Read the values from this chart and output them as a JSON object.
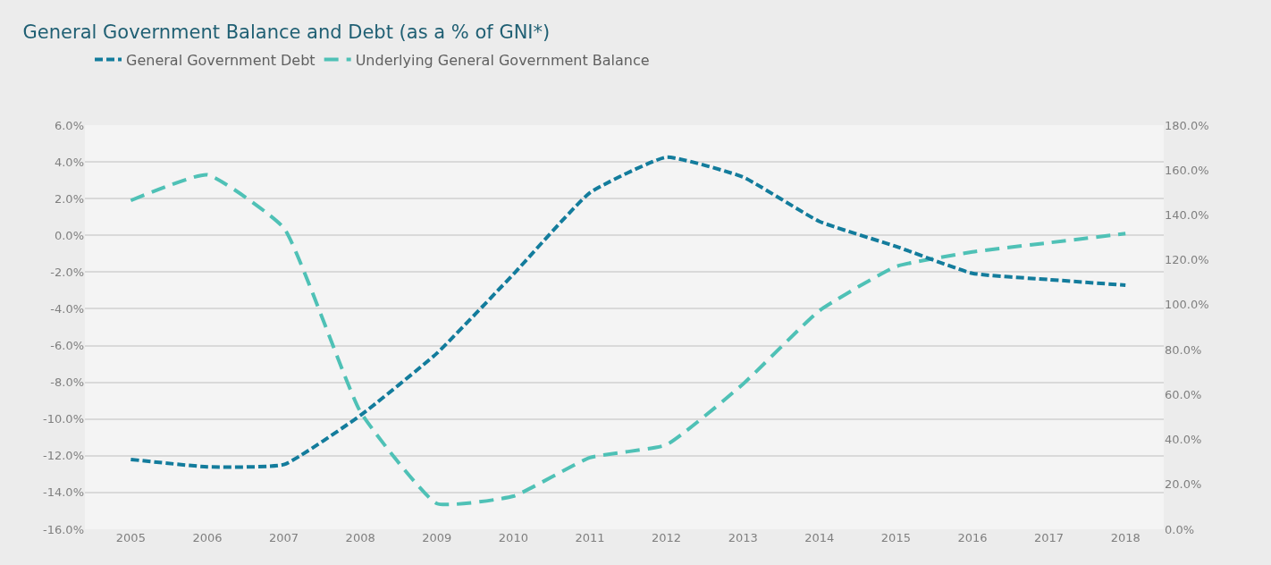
{
  "chart_data": {
    "type": "line",
    "title": "General Government Balance and Debt (as a % of GNI*)",
    "categories": [
      "2005",
      "2006",
      "2007",
      "2008",
      "2009",
      "2010",
      "2011",
      "2012",
      "2013",
      "2014",
      "2015",
      "2016",
      "2017",
      "2018"
    ],
    "series": [
      {
        "name": "General Government Debt",
        "color": "#137c9c",
        "axis": "y2",
        "values": [
          31.1,
          27.8,
          28.8,
          50.7,
          78.4,
          113.6,
          149.9,
          165.7,
          156.9,
          137.1,
          126,
          114,
          111.2,
          108.7
        ]
      },
      {
        "name": "Underlying General Government Balance",
        "color": "#4fc1b6",
        "values": [
          1.9,
          3.3,
          0.4,
          -9.6,
          -14.6,
          -14.2,
          -12.1,
          -11.4,
          -8.1,
          -4.1,
          -1.7,
          -0.9,
          -0.4,
          0.1
        ]
      }
    ],
    "ylim": [
      -16,
      6
    ],
    "yticks": [
      {
        "value": -16,
        "label": "-16.0%"
      },
      {
        "value": -14,
        "label": "-14.0%"
      },
      {
        "value": -12,
        "label": "-12.0%"
      },
      {
        "value": -10,
        "label": "-10.0%"
      },
      {
        "value": -8,
        "label": "-8.0%"
      },
      {
        "value": -6,
        "label": "-6.0%"
      },
      {
        "value": -4,
        "label": "-4.0%"
      },
      {
        "value": -2,
        "label": "-2.0%"
      },
      {
        "value": 0,
        "label": "0.0%"
      },
      {
        "value": 2,
        "label": "2.0%"
      },
      {
        "value": 4,
        "label": "4.0%"
      },
      {
        "value": 6,
        "label": "6.0%"
      }
    ],
    "y2lim": [
      0,
      180
    ],
    "y2ticks": [
      {
        "value": 0,
        "label": "0.0%"
      },
      {
        "value": 20,
        "label": "20.0%"
      },
      {
        "value": 40,
        "label": "40.0%"
      },
      {
        "value": 60,
        "label": "60.0%"
      },
      {
        "value": 80,
        "label": "80.0%"
      },
      {
        "value": 100,
        "label": "100.0%"
      },
      {
        "value": 120,
        "label": "120.0%"
      },
      {
        "value": 140,
        "label": "140.0%"
      },
      {
        "value": 160,
        "label": "160.0%"
      },
      {
        "value": 180,
        "label": "180.0%"
      }
    ],
    "grid": "y",
    "legend": "top left",
    "marker": "none",
    "line_style": "dashed"
  }
}
